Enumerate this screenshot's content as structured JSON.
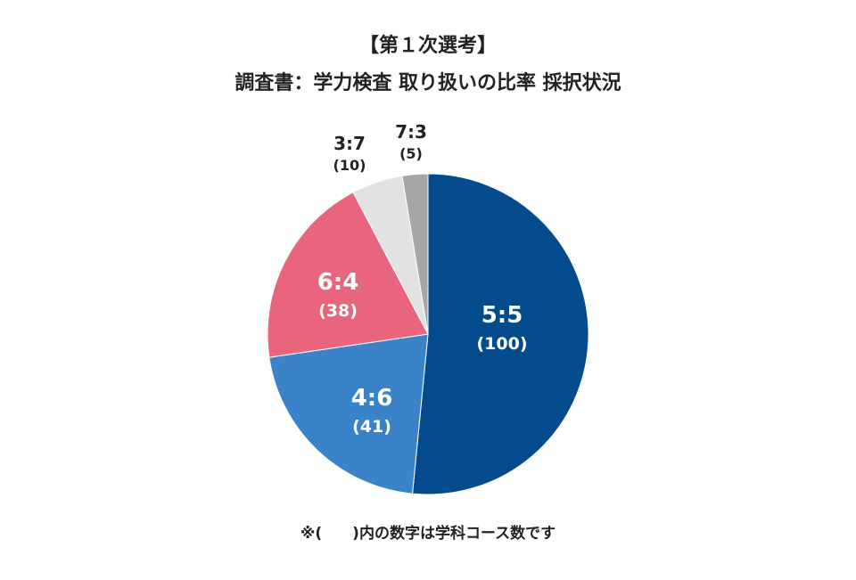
{
  "chart_data": {
    "type": "pie",
    "title": "【第１次選考】",
    "subtitle": "調査書：学力検査 取り扱いの比率 採択状況",
    "slices": [
      {
        "label": "5:5",
        "count_label": "(100)",
        "value": 100,
        "color": "#034b8c"
      },
      {
        "label": "4:6",
        "count_label": "(41)",
        "value": 41,
        "color": "#3b83c8"
      },
      {
        "label": "6:4",
        "count_label": "(38)",
        "value": 38,
        "color": "#e8657d"
      },
      {
        "label": "3:7",
        "count_label": "(10)",
        "value": 10,
        "color": "#e2e2e2"
      },
      {
        "label": "7:3",
        "count_label": "(5)",
        "value": 5,
        "color": "#a6a6a6"
      }
    ],
    "note": "※(　　)内の数字は学科コース数です"
  }
}
